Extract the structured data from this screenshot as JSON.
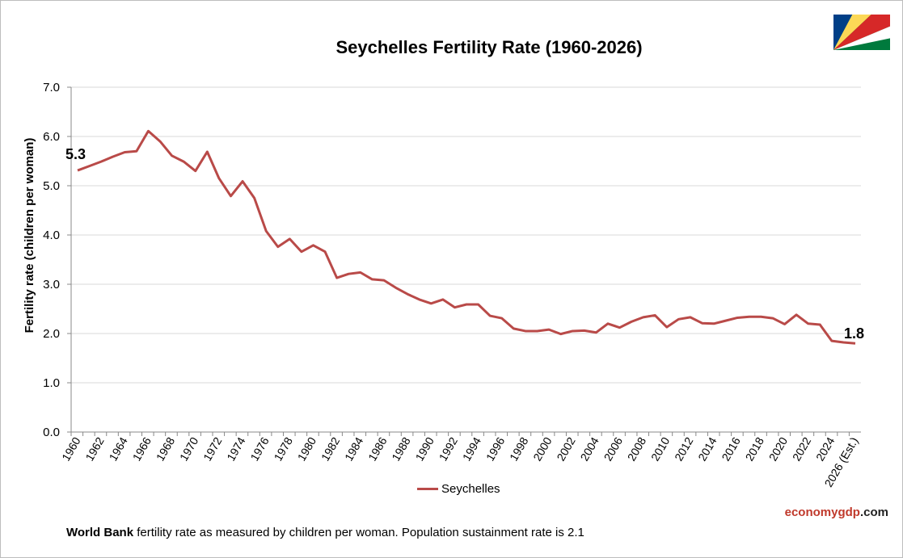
{
  "chart_data": {
    "type": "line",
    "title": "Seychelles Fertility Rate (1960-2026)",
    "ylabel": "Fertility rate (children per woman)",
    "xlabel": "",
    "ylim": [
      0,
      7
    ],
    "yticks": [
      "0.0",
      "1.0",
      "2.0",
      "3.0",
      "4.0",
      "5.0",
      "6.0",
      "7.0"
    ],
    "grid": true,
    "legend_position": "bottom",
    "x": [
      1960,
      1961,
      1962,
      1963,
      1964,
      1965,
      1966,
      1967,
      1968,
      1969,
      1970,
      1971,
      1972,
      1973,
      1974,
      1975,
      1976,
      1977,
      1978,
      1979,
      1980,
      1981,
      1982,
      1983,
      1984,
      1985,
      1986,
      1987,
      1988,
      1989,
      1990,
      1991,
      1992,
      1993,
      1994,
      1995,
      1996,
      1997,
      1998,
      1999,
      2000,
      2001,
      2002,
      2003,
      2004,
      2005,
      2006,
      2007,
      2008,
      2009,
      2010,
      2011,
      2012,
      2013,
      2014,
      2015,
      2016,
      2017,
      2018,
      2019,
      2020,
      2021,
      2022,
      2023,
      2024,
      2025,
      2026
    ],
    "xtick_labels": [
      "1960",
      "1962",
      "1964",
      "1966",
      "1968",
      "1970",
      "1972",
      "1974",
      "1976",
      "1978",
      "1980",
      "1982",
      "1984",
      "1986",
      "1988",
      "1990",
      "1992",
      "1994",
      "1996",
      "1998",
      "2000",
      "2002",
      "2004",
      "2006",
      "2008",
      "2010",
      "2012",
      "2014",
      "2016",
      "2018",
      "2020",
      "2022",
      "2024",
      "2026 (Est.)"
    ],
    "series": [
      {
        "name": "Seychelles",
        "color": "#b94a48",
        "values": [
          5.31,
          5.4,
          5.49,
          5.59,
          5.68,
          5.7,
          6.11,
          5.9,
          5.61,
          5.49,
          5.3,
          5.69,
          5.15,
          4.79,
          5.09,
          4.75,
          4.08,
          3.76,
          3.92,
          3.66,
          3.79,
          3.66,
          3.13,
          3.21,
          3.24,
          3.1,
          3.08,
          2.93,
          2.8,
          2.69,
          2.61,
          2.69,
          2.53,
          2.59,
          2.59,
          2.36,
          2.31,
          2.1,
          2.05,
          2.05,
          2.08,
          1.99,
          2.05,
          2.06,
          2.02,
          2.2,
          2.12,
          2.24,
          2.33,
          2.37,
          2.13,
          2.29,
          2.33,
          2.21,
          2.2,
          2.26,
          2.32,
          2.34,
          2.34,
          2.31,
          2.19,
          2.38,
          2.2,
          2.18,
          1.85,
          1.82,
          1.8
        ]
      }
    ],
    "annotations": {
      "start": "5.3",
      "end": "1.8"
    }
  },
  "brand": {
    "part1": "economy",
    "part2": "gdp",
    "part3": ".com"
  },
  "footer": {
    "bold": "World Bank",
    "text": " fertility rate as measured by children per woman.  Population sustainment  rate is 2.1"
  },
  "flag": {
    "name": "Seychelles flag",
    "colors": [
      "#003f87",
      "#fcd856",
      "#d62828",
      "#ffffff",
      "#007a3d"
    ]
  }
}
